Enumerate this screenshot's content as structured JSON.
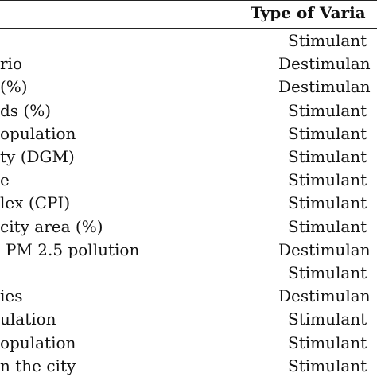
{
  "table": {
    "header_type": "Type of Varia",
    "rows": [
      {
        "name": "",
        "type": "Stimulant",
        "kind": "stim"
      },
      {
        "name": "rio",
        "type": "Destimulan",
        "kind": "destim"
      },
      {
        "name": "(%)",
        "type": "Destimulan",
        "kind": "destim"
      },
      {
        "name": "ds (%)",
        "type": "Stimulant",
        "kind": "stim"
      },
      {
        "name": "opulation",
        "type": "Stimulant",
        "kind": "stim"
      },
      {
        "name": "ty (DGM)",
        "type": "Stimulant",
        "kind": "stim"
      },
      {
        "name": "e",
        "type": "Stimulant",
        "kind": "stim"
      },
      {
        "name": "lex (CPI)",
        "type": "Stimulant",
        "kind": "stim"
      },
      {
        "name": "city area (%)",
        "type": "Stimulant",
        "kind": "stim"
      },
      {
        "name": "PM 2.5 pollution",
        "type": "Destimulan",
        "kind": "destim"
      },
      {
        "name": "",
        "type": "Stimulant",
        "kind": "stim"
      },
      {
        "name": "ies",
        "type": "Destimulan",
        "kind": "destim"
      },
      {
        "name": "ulation",
        "type": "Stimulant",
        "kind": "stim"
      },
      {
        "name": "opulation",
        "type": "Stimulant",
        "kind": "stim"
      },
      {
        "name": "n the city",
        "type": "Stimulant",
        "kind": "stim"
      }
    ]
  }
}
